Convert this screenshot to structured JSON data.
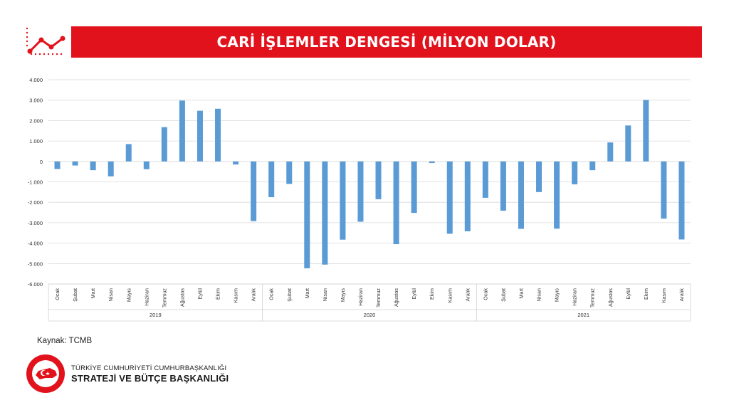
{
  "header": {
    "title": "CARİ İŞLEMLER DENGESİ (MİLYON DOLAR)"
  },
  "footer": {
    "source": "Kaynak: TCMB",
    "org_line1": "TÜRKİYE CUMHURİYETİ CUMHURBAŞKANLIĞI",
    "org_line2": "STRATEJİ VE BÜTÇE BAŞKANLIĞI",
    "seal_text": "T.C. CUMHURBAŞKANLIĞI STRATEJİ VE BÜTÇE BAŞKANLIĞI"
  },
  "colors": {
    "accent": "#e2121d",
    "bar": "#5b9bd5"
  },
  "chart_data": {
    "type": "bar",
    "title": "",
    "xlabel": "",
    "ylabel": "",
    "ylim": [
      -6000,
      4000
    ],
    "yticks": [
      4000,
      3000,
      2000,
      1000,
      0,
      -1000,
      -2000,
      -3000,
      -4000,
      -5000,
      -6000
    ],
    "ytick_labels": [
      "4.000",
      "3.000",
      "2.000",
      "1.000",
      "0",
      "-1.000",
      "-2.000",
      "-3.000",
      "-4.000",
      "-5.000",
      "-6.000"
    ],
    "grid": true,
    "legend": "none",
    "groups": [
      {
        "label": "2019",
        "months": [
          "Ocak",
          "Şubat",
          "Mart",
          "Nisan",
          "Mayıs",
          "Haziran",
          "Temmuz",
          "Ağustos",
          "Eylül",
          "Ekim",
          "Kasım",
          "Aralık"
        ],
        "values": [
          -370,
          -200,
          -430,
          -730,
          850,
          -380,
          1680,
          2980,
          2480,
          2580,
          -150,
          -2920
        ]
      },
      {
        "label": "2020",
        "months": [
          "Ocak",
          "Şubat",
          "Mart",
          "Nisan",
          "Mayıs",
          "Haziran",
          "Temmuz",
          "Ağustos",
          "Eylül",
          "Ekim",
          "Kasım",
          "Aralık"
        ],
        "values": [
          -1750,
          -1100,
          -5230,
          -5050,
          -3830,
          -2950,
          -1850,
          -4050,
          -2520,
          -80,
          -3540,
          -3420
        ]
      },
      {
        "label": "2021",
        "months": [
          "Ocak",
          "Şubat",
          "Mart",
          "Nisan",
          "Mayıs",
          "Haziran",
          "Temmuz",
          "Ağustos",
          "Eylül",
          "Ekim",
          "Kasım",
          "Aralık"
        ],
        "values": [
          -1780,
          -2410,
          -3300,
          -1500,
          -3290,
          -1120,
          -430,
          930,
          1760,
          3010,
          -2800,
          -3820
        ]
      }
    ]
  }
}
